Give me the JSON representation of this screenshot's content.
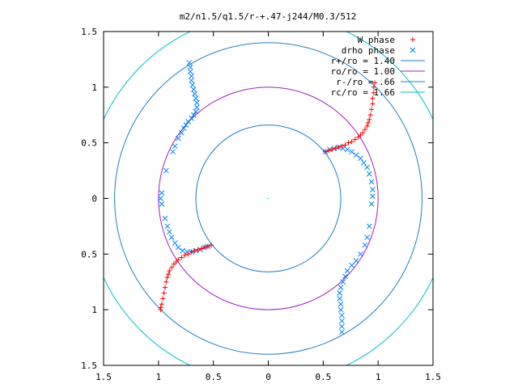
{
  "chart_data": {
    "type": "scatter",
    "title": "m2/n1.5/q1.5/r-+.47-j244/M0.3/512",
    "xlabel": "",
    "ylabel": "",
    "xlim": [
      -1.5,
      1.5
    ],
    "ylim": [
      -1.5,
      1.5
    ],
    "x_ticks": [
      -1.5,
      -1,
      -0.5,
      0,
      0.5,
      1,
      1.5
    ],
    "y_ticks": [
      -1.5,
      -1,
      -0.5,
      0,
      0.5,
      1,
      1.5
    ],
    "x_tick_labels": [
      "1.5",
      "1",
      "0.5",
      "0",
      "0.5",
      "1",
      "1.5"
    ],
    "y_tick_labels": [
      "1.5",
      "1",
      "0.5",
      "0",
      "0.5",
      "1",
      "1.5"
    ],
    "grid": false,
    "legend_position": "top-right",
    "legend": [
      {
        "label": "W phase",
        "marker": "plus",
        "color": "#ff0000"
      },
      {
        "label": "drho phase",
        "marker": "x",
        "color": "#0080ff"
      },
      {
        "label": "r+/ro = 1.40",
        "marker": "line",
        "color": "#1f7fc0"
      },
      {
        "label": "ro/ro = 1.00",
        "marker": "line",
        "color": "#a020c0"
      },
      {
        "label": "r-/ro = .66",
        "marker": "line",
        "color": "#1f7fc0"
      },
      {
        "label": "rc/ro = 1.66",
        "marker": "line",
        "color": "#00c0d0"
      }
    ],
    "circles": [
      {
        "name": "r+/ro",
        "r": 1.4,
        "color": "#1f7fc0"
      },
      {
        "name": "ro/ro",
        "r": 1.0,
        "color": "#a020c0"
      },
      {
        "name": "r-/ro",
        "r": 0.66,
        "color": "#1f7fc0"
      },
      {
        "name": "rc/ro",
        "r": 1.66,
        "color": "#00c0d0"
      }
    ],
    "series": [
      {
        "name": "W phase",
        "marker": "plus",
        "color": "#ff0000",
        "points": [
          [
            0.52,
            0.42
          ],
          [
            0.55,
            0.43
          ],
          [
            0.58,
            0.44
          ],
          [
            0.61,
            0.45
          ],
          [
            0.64,
            0.46
          ],
          [
            0.67,
            0.47
          ],
          [
            0.7,
            0.48
          ],
          [
            0.73,
            0.5
          ],
          [
            0.76,
            0.51
          ],
          [
            0.79,
            0.53
          ],
          [
            0.82,
            0.55
          ],
          [
            0.84,
            0.57
          ],
          [
            0.86,
            0.59
          ],
          [
            0.88,
            0.62
          ],
          [
            0.9,
            0.65
          ],
          [
            0.91,
            0.68
          ],
          [
            0.92,
            0.71
          ],
          [
            0.93,
            0.75
          ],
          [
            0.94,
            0.8
          ],
          [
            0.95,
            0.85
          ],
          [
            0.95,
            0.9
          ],
          [
            0.96,
            0.95
          ],
          [
            0.96,
            1.0
          ],
          [
            0.97,
            1.04
          ],
          [
            -0.52,
            -0.42
          ],
          [
            -0.55,
            -0.43
          ],
          [
            -0.58,
            -0.44
          ],
          [
            -0.61,
            -0.45
          ],
          [
            -0.64,
            -0.46
          ],
          [
            -0.67,
            -0.47
          ],
          [
            -0.7,
            -0.48
          ],
          [
            -0.73,
            -0.5
          ],
          [
            -0.76,
            -0.51
          ],
          [
            -0.79,
            -0.53
          ],
          [
            -0.82,
            -0.55
          ],
          [
            -0.84,
            -0.57
          ],
          [
            -0.86,
            -0.59
          ],
          [
            -0.88,
            -0.62
          ],
          [
            -0.9,
            -0.65
          ],
          [
            -0.91,
            -0.68
          ],
          [
            -0.92,
            -0.71
          ],
          [
            -0.93,
            -0.75
          ],
          [
            -0.94,
            -0.8
          ],
          [
            -0.95,
            -0.85
          ],
          [
            -0.96,
            -0.9
          ],
          [
            -0.97,
            -0.95
          ],
          [
            -0.98,
            -0.98
          ],
          [
            -0.98,
            -1.0
          ]
        ]
      },
      {
        "name": "drho phase",
        "marker": "x",
        "color": "#0080ff",
        "points": [
          [
            -0.72,
            1.22
          ],
          [
            -0.71,
            1.18
          ],
          [
            -0.71,
            1.14
          ],
          [
            -0.7,
            1.1
          ],
          [
            -0.7,
            1.06
          ],
          [
            -0.69,
            1.02
          ],
          [
            -0.68,
            0.98
          ],
          [
            -0.67,
            0.94
          ],
          [
            -0.66,
            0.9
          ],
          [
            -0.65,
            0.86
          ],
          [
            -0.65,
            0.82
          ],
          [
            -0.66,
            0.78
          ],
          [
            -0.68,
            0.75
          ],
          [
            -0.7,
            0.72
          ],
          [
            -0.73,
            0.69
          ],
          [
            -0.75,
            0.66
          ],
          [
            -0.77,
            0.63
          ],
          [
            -0.79,
            0.59
          ],
          [
            -0.82,
            0.54
          ],
          [
            -0.85,
            0.47
          ],
          [
            -0.87,
            0.42
          ],
          [
            -0.93,
            0.25
          ],
          [
            -0.97,
            0.05
          ],
          [
            -0.98,
            0.0
          ],
          [
            -0.97,
            -0.05
          ],
          [
            -0.94,
            -0.18
          ],
          [
            -0.92,
            -0.25
          ],
          [
            -0.9,
            -0.3
          ],
          [
            -0.88,
            -0.35
          ],
          [
            -0.85,
            -0.4
          ],
          [
            -0.82,
            -0.44
          ],
          [
            -0.78,
            -0.47
          ],
          [
            -0.74,
            -0.48
          ],
          [
            -0.7,
            -0.48
          ],
          [
            -0.66,
            -0.47
          ],
          [
            -0.62,
            -0.46
          ],
          [
            -0.58,
            -0.44
          ],
          [
            -0.55,
            -0.43
          ],
          [
            0.52,
            0.42
          ],
          [
            0.56,
            0.44
          ],
          [
            0.6,
            0.45
          ],
          [
            0.64,
            0.46
          ],
          [
            0.68,
            0.45
          ],
          [
            0.72,
            0.44
          ],
          [
            0.76,
            0.42
          ],
          [
            0.8,
            0.39
          ],
          [
            0.84,
            0.36
          ],
          [
            0.87,
            0.32
          ],
          [
            0.9,
            0.28
          ],
          [
            0.92,
            0.22
          ],
          [
            0.94,
            0.15
          ],
          [
            0.95,
            0.08
          ],
          [
            0.95,
            0.02
          ],
          [
            0.94,
            -0.05
          ],
          [
            0.92,
            -0.25
          ],
          [
            0.9,
            -0.35
          ],
          [
            0.88,
            -0.42
          ],
          [
            0.84,
            -0.5
          ],
          [
            0.8,
            -0.56
          ],
          [
            0.76,
            -0.6
          ],
          [
            0.72,
            -0.65
          ],
          [
            0.7,
            -0.7
          ],
          [
            0.68,
            -0.75
          ],
          [
            0.66,
            -0.8
          ],
          [
            0.65,
            -0.85
          ],
          [
            0.65,
            -0.9
          ],
          [
            0.66,
            -0.95
          ],
          [
            0.66,
            -1.0
          ],
          [
            0.67,
            -1.05
          ],
          [
            0.67,
            -1.1
          ],
          [
            0.67,
            -1.15
          ],
          [
            0.67,
            -1.2
          ]
        ]
      }
    ]
  }
}
